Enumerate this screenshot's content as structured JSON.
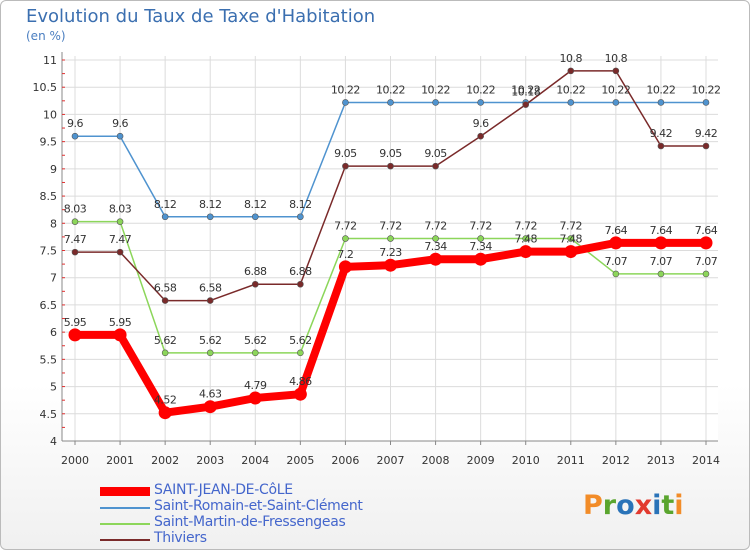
{
  "title": "Evolution du Taux de Taxe d'Habitation",
  "subtitle": "(en %)",
  "logo_text": "Proxiti",
  "logo_colors": [
    "#f28c28",
    "#5aa52e",
    "#2a73b8",
    "#e23a2f",
    "#2a73b8",
    "#5aa52e",
    "#f28c28"
  ],
  "chart_data": {
    "type": "line",
    "title": "Evolution du Taux de Taxe d'Habitation",
    "ylabel": "(en %)",
    "xlabel": "",
    "x": [
      "2000",
      "2001",
      "2002",
      "2003",
      "2004",
      "2005",
      "2006",
      "2007",
      "2008",
      "2009",
      "2010",
      "2011",
      "2012",
      "2013",
      "2014"
    ],
    "ylim": [
      4,
      11
    ],
    "yticks": [
      "4",
      "4.5",
      "5",
      "5.5",
      "6",
      "6.5",
      "7",
      "7.5",
      "8",
      "8.5",
      "9",
      "9.5",
      "10",
      "10.5",
      "11"
    ],
    "series": [
      {
        "name": "Saint-Romain-et-Saint-Clément",
        "color": "#4f93cf",
        "values": [
          9.6,
          9.6,
          8.12,
          8.12,
          8.12,
          8.12,
          10.22,
          10.22,
          10.22,
          10.22,
          10.22,
          10.22,
          10.22,
          10.22,
          10.22
        ],
        "labels": [
          "9.6",
          "9.6",
          "8.12",
          "8.12",
          "8.12",
          "8.12",
          "10.22",
          "10.22",
          "10.22",
          "10.22",
          "10.22",
          "10.22",
          "10.22",
          "10.22",
          "10.22"
        ]
      },
      {
        "name": "Saint-Martin-de-Fressengeas",
        "color": "#8cd65a",
        "values": [
          8.03,
          8.03,
          5.62,
          5.62,
          5.62,
          5.62,
          7.72,
          7.72,
          7.72,
          7.72,
          7.72,
          7.72,
          7.07,
          7.07,
          7.07
        ],
        "labels": [
          "8.03",
          "8.03",
          "5.62",
          "5.62",
          "5.62",
          "5.62",
          "7.72",
          "7.72",
          "7.72",
          "7.72",
          "7.72",
          "7.72",
          "7.07",
          "7.07",
          "7.07"
        ]
      },
      {
        "name": "Thiviers",
        "color": "#7a2a2a",
        "values": [
          7.47,
          7.47,
          6.58,
          6.58,
          6.88,
          6.88,
          9.05,
          9.05,
          9.05,
          9.6,
          10.18,
          10.8,
          10.8,
          9.42,
          9.42
        ],
        "labels": [
          "7.47",
          "7.47",
          "6.58",
          "6.58",
          "6.88",
          "6.88",
          "9.05",
          "9.05",
          "9.05",
          "9.6",
          "10.18",
          "10.8",
          "10.8",
          "9.42",
          "9.42"
        ]
      },
      {
        "name": "SAINT-JEAN-DE-CôLE",
        "color": "#ff0000",
        "values": [
          5.95,
          5.95,
          4.52,
          4.63,
          4.79,
          4.86,
          7.2,
          7.23,
          7.34,
          7.34,
          7.48,
          7.48,
          7.64,
          7.64,
          7.64
        ],
        "labels": [
          "5.95",
          "5.95",
          "4.52",
          "4.63",
          "4.79",
          "4.86",
          "7.2",
          "7.23",
          "7.34",
          "7.34",
          "7.48",
          "7.48",
          "7.64",
          "7.64",
          "7.64"
        ]
      }
    ],
    "legend": [
      "SAINT-JEAN-DE-CôLE",
      "Saint-Romain-et-Saint-Clément",
      "Saint-Martin-de-Fressengeas",
      "Thiviers"
    ],
    "legend_position": "bottom-left"
  }
}
